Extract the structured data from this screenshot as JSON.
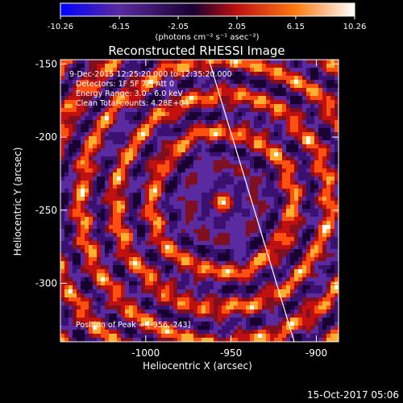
{
  "chart_data": {
    "type": "heatmap",
    "title": "Reconstructed RHESSI Image",
    "xlabel": "Heliocentric X (arcsec)",
    "ylabel": "Heliocentric Y (arcsec)",
    "xlim": [
      -1050,
      -887
    ],
    "ylim": [
      -340,
      -147
    ],
    "x_ticks": [
      -1000,
      -950,
      -900
    ],
    "x_tick_labels": [
      "-1000",
      "-950",
      "-900"
    ],
    "y_ticks": [
      -150,
      -200,
      -250,
      -300
    ],
    "y_tick_labels": [
      "-150",
      "-200",
      "-250",
      "-300"
    ],
    "colorbar": {
      "range": [
        -10.26,
        10.26
      ],
      "ticks": [
        -10.26,
        -6.15,
        -2.05,
        2.05,
        6.15,
        10.26
      ],
      "tick_labels": [
        "-10.26",
        "-6.15",
        "-2.05",
        "2.05",
        "6.15",
        "10.26"
      ],
      "units": "(photons cm⁻² s⁻¹ asec⁻²)",
      "colors": [
        "#0000ff",
        "#5a2aa0",
        "#1a0030",
        "#c01010",
        "#ff7a10",
        "#ffffff"
      ]
    },
    "info_lines": [
      "9-Dec-2015 12:25:20.000 to 12:35:20.000",
      "Detectors: 1F 5F 7F, Att 0",
      "Energy Range: 3.0 - 6.0 keV",
      "Clean    Total counts: 4.28E+04"
    ],
    "peak_label": "Position of Peak = [-956,-243]",
    "peak": [
      -956,
      -243
    ],
    "limb_line": [
      [
        -963,
        -147
      ],
      [
        -913,
        -340
      ]
    ]
  },
  "footer": {
    "date": "15-Oct-2017 05:06"
  }
}
